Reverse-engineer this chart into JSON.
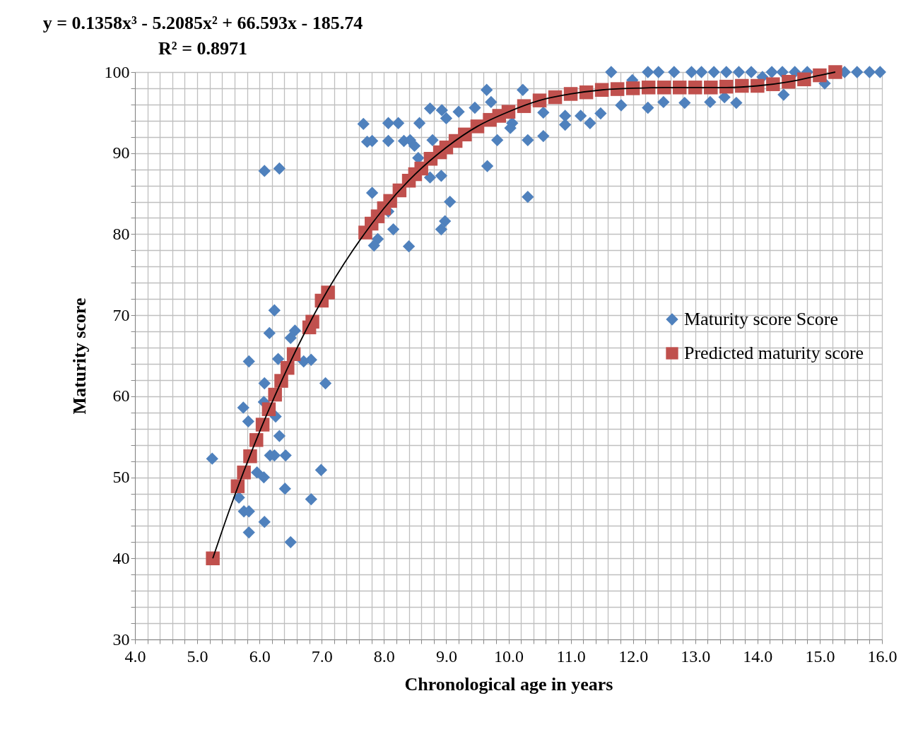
{
  "chart_data": {
    "type": "scatter",
    "annotations": [
      "y = 0.1358x³ - 5.2085x² + 66.593x - 185.74",
      "R² = 0.8971"
    ],
    "xlabel": "Chronological age in years",
    "ylabel": "Maturity score",
    "xlim": [
      4,
      16
    ],
    "ylim": [
      30,
      100
    ],
    "xticks": [
      {
        "value": 4,
        "label": "4.0"
      },
      {
        "value": 4.2,
        "label": null
      },
      {
        "value": 4.4,
        "label": null
      },
      {
        "value": 4.6,
        "label": null
      },
      {
        "value": 4.8,
        "label": null
      },
      {
        "value": 5,
        "label": "5.0"
      },
      {
        "value": 5.2,
        "label": null
      },
      {
        "value": 5.4,
        "label": null
      },
      {
        "value": 5.6,
        "label": null
      },
      {
        "value": 5.8,
        "label": null
      },
      {
        "value": 6,
        "label": "6.0"
      },
      {
        "value": 6.2,
        "label": null
      },
      {
        "value": 6.4,
        "label": null
      },
      {
        "value": 6.6,
        "label": null
      },
      {
        "value": 6.8,
        "label": null
      },
      {
        "value": 7,
        "label": "7.0"
      },
      {
        "value": 7.2,
        "label": null
      },
      {
        "value": 7.4,
        "label": null
      },
      {
        "value": 7.6,
        "label": null
      },
      {
        "value": 7.8,
        "label": null
      },
      {
        "value": 8,
        "label": "8.0"
      },
      {
        "value": 8.2,
        "label": null
      },
      {
        "value": 8.4,
        "label": null
      },
      {
        "value": 8.6,
        "label": null
      },
      {
        "value": 8.8,
        "label": null
      },
      {
        "value": 9,
        "label": "9.0"
      },
      {
        "value": 9.2,
        "label": null
      },
      {
        "value": 9.4,
        "label": null
      },
      {
        "value": 9.6,
        "label": null
      },
      {
        "value": 9.8,
        "label": null
      },
      {
        "value": 10,
        "label": "10.0"
      },
      {
        "value": 10.2,
        "label": null
      },
      {
        "value": 10.4,
        "label": null
      },
      {
        "value": 10.6,
        "label": null
      },
      {
        "value": 10.8,
        "label": null
      },
      {
        "value": 11,
        "label": "11.0"
      },
      {
        "value": 11.2,
        "label": null
      },
      {
        "value": 11.4,
        "label": null
      },
      {
        "value": 11.6,
        "label": null
      },
      {
        "value": 11.8,
        "label": null
      },
      {
        "value": 12,
        "label": "12.0"
      },
      {
        "value": 12.2,
        "label": null
      },
      {
        "value": 12.4,
        "label": null
      },
      {
        "value": 12.6,
        "label": null
      },
      {
        "value": 12.8,
        "label": null
      },
      {
        "value": 13,
        "label": "13.0"
      },
      {
        "value": 13.2,
        "label": null
      },
      {
        "value": 13.4,
        "label": null
      },
      {
        "value": 13.6,
        "label": null
      },
      {
        "value": 13.8,
        "label": null
      },
      {
        "value": 14,
        "label": "14.0"
      },
      {
        "value": 14.2,
        "label": null
      },
      {
        "value": 14.4,
        "label": null
      },
      {
        "value": 14.6,
        "label": null
      },
      {
        "value": 14.8,
        "label": null
      },
      {
        "value": 15,
        "label": "15.0"
      },
      {
        "value": 15.2,
        "label": null
      },
      {
        "value": 15.4,
        "label": null
      },
      {
        "value": 15.6,
        "label": null
      },
      {
        "value": 15.8,
        "label": null
      },
      {
        "value": 16,
        "label": "16.0"
      }
    ],
    "yticks": [
      30,
      {
        "value": 32,
        "label": null
      },
      {
        "value": 34,
        "label": null
      },
      {
        "value": 36,
        "label": null
      },
      {
        "value": 38,
        "label": null
      },
      40,
      {
        "value": 42,
        "label": null
      },
      {
        "value": 44,
        "label": null
      },
      {
        "value": 46,
        "label": null
      },
      {
        "value": 48,
        "label": null
      },
      50,
      {
        "value": 52,
        "label": null
      },
      {
        "value": 54,
        "label": null
      },
      {
        "value": 56,
        "label": null
      },
      {
        "value": 58,
        "label": null
      },
      60,
      {
        "value": 62,
        "label": null
      },
      {
        "value": 64,
        "label": null
      },
      {
        "value": 66,
        "label": null
      },
      {
        "value": 68,
        "label": null
      },
      70,
      {
        "value": 72,
        "label": null
      },
      {
        "value": 74,
        "label": null
      },
      {
        "value": 76,
        "label": null
      },
      {
        "value": 78,
        "label": null
      },
      80,
      {
        "value": 82,
        "label": null
      },
      {
        "value": 84,
        "label": null
      },
      {
        "value": 86,
        "label": null
      },
      {
        "value": 88,
        "label": null
      },
      90,
      {
        "value": 92,
        "label": null
      },
      {
        "value": 94,
        "label": null
      },
      {
        "value": 96,
        "label": null
      },
      {
        "value": 98,
        "label": null
      },
      100
    ],
    "grid": true,
    "legend": "right",
    "series": [
      {
        "name": "Maturity score Score",
        "color": "#4f81bd",
        "marker": "diamond",
        "x": [
          5.24,
          5.67,
          5.75,
          5.83,
          5.83,
          6.08,
          6.5,
          6.83,
          6.41,
          6.99,
          6.07,
          5.96,
          6.17,
          6.24,
          6.42,
          6.32,
          6.26,
          5.82,
          5.74,
          6.07,
          6.08,
          7.06,
          5.83,
          6.3,
          6.71,
          6.83,
          6.5,
          6.57,
          6.16,
          6.24,
          6.08,
          6.32,
          7.67,
          7.81,
          7.73,
          8.07,
          8.23,
          8.07,
          8.32,
          8.42,
          8.49,
          8.57,
          8.74,
          8.93,
          9.0,
          9.2,
          9.46,
          9.72,
          8.78,
          9.82,
          10.31,
          10.56,
          10.56,
          10.06,
          10.03,
          9.66,
          10.31,
          7.81,
          8.55,
          8.74,
          8.92,
          9.06,
          8.98,
          8.92,
          8.15,
          7.9,
          7.84,
          8.4,
          8.07,
          9.65,
          10.23,
          11.65,
          12.24,
          12.41,
          12.66,
          12.94,
          13.1,
          13.3,
          13.5,
          13.7,
          13.9,
          14.23,
          14.4,
          14.6,
          14.8,
          15.4,
          15.6,
          15.8,
          15.97,
          10.91,
          11.31,
          10.91,
          11.16,
          11.48,
          12.24,
          12.49,
          12.83,
          13.24,
          13.66,
          14.42,
          15.08,
          11.81,
          11.99,
          14.08,
          13.47
        ],
        "values": [
          52.3,
          47.5,
          45.8,
          45.8,
          43.2,
          44.5,
          42.0,
          47.3,
          48.6,
          50.9,
          50.0,
          50.6,
          52.7,
          52.7,
          52.7,
          55.1,
          57.5,
          56.9,
          58.6,
          59.3,
          61.6,
          61.6,
          64.3,
          64.6,
          64.3,
          64.5,
          67.2,
          68.1,
          67.8,
          70.6,
          87.8,
          88.1,
          93.6,
          91.5,
          91.4,
          93.7,
          93.7,
          91.5,
          91.5,
          91.6,
          90.9,
          93.7,
          95.5,
          95.3,
          94.3,
          95.1,
          95.6,
          96.3,
          91.6,
          91.6,
          91.6,
          92.1,
          95.0,
          93.7,
          93.1,
          88.4,
          84.6,
          85.1,
          89.4,
          87.0,
          87.2,
          84.0,
          81.6,
          80.6,
          80.6,
          79.4,
          78.6,
          78.5,
          82.8,
          97.8,
          97.8,
          100,
          100,
          100,
          100,
          100,
          100,
          100,
          100,
          100,
          100,
          100,
          100,
          100,
          100,
          100,
          100,
          100,
          100,
          93.5,
          93.7,
          94.6,
          94.6,
          94.9,
          95.6,
          96.3,
          96.2,
          96.3,
          96.2,
          97.2,
          98.6,
          95.9,
          99.0,
          99.4,
          96.9
        ]
      },
      {
        "name": "Predicted maturity score",
        "color": "#c0504d",
        "marker": "square",
        "x": [
          5.25,
          5.65,
          5.75,
          5.85,
          5.95,
          6.05,
          6.15,
          6.25,
          6.35,
          6.45,
          6.55,
          6.8,
          6.85,
          7.0,
          7.1,
          7.7,
          7.8,
          7.9,
          8.0,
          8.1,
          8.25,
          8.4,
          8.5,
          8.6,
          8.75,
          8.9,
          9.0,
          9.15,
          9.3,
          9.5,
          9.7,
          9.85,
          10.0,
          10.25,
          10.5,
          10.75,
          11.0,
          11.25,
          11.5,
          11.75,
          12.0,
          12.25,
          12.5,
          12.75,
          13.0,
          13.25,
          13.5,
          13.75,
          14.0,
          14.25,
          14.5,
          14.75,
          15.0,
          15.25
        ],
        "values": [
          40.0,
          48.9,
          50.6,
          52.6,
          54.6,
          56.5,
          58.4,
          60.2,
          61.9,
          63.5,
          65.2,
          68.5,
          69.2,
          71.8,
          72.8,
          80.2,
          81.3,
          82.2,
          83.2,
          84.1,
          85.4,
          86.6,
          87.4,
          88.1,
          89.3,
          90.1,
          90.7,
          91.5,
          92.3,
          93.3,
          94.1,
          94.6,
          95.1,
          95.8,
          96.5,
          96.9,
          97.3,
          97.5,
          97.8,
          97.9,
          98.0,
          98.1,
          98.1,
          98.1,
          98.1,
          98.1,
          98.2,
          98.3,
          98.3,
          98.5,
          98.8,
          99.1,
          99.6,
          100.0
        ]
      },
      {
        "type": "line",
        "color": "#000000",
        "marker": "none",
        "x": [
          5.25,
          5.5,
          6.0,
          6.5,
          7.0,
          7.5,
          8.0,
          8.5,
          9.0,
          9.5,
          10.0,
          10.5,
          11.0,
          11.5,
          12.0,
          12.5,
          13.0,
          13.5,
          14.0,
          14.5,
          15.0,
          15.25
        ],
        "values": [
          40.0,
          45.6,
          55.6,
          64.3,
          71.8,
          78.0,
          83.2,
          87.4,
          90.7,
          93.3,
          95.1,
          96.5,
          97.3,
          97.8,
          98.0,
          98.1,
          98.1,
          98.1,
          98.3,
          98.8,
          99.6,
          100.0
        ]
      }
    ]
  }
}
